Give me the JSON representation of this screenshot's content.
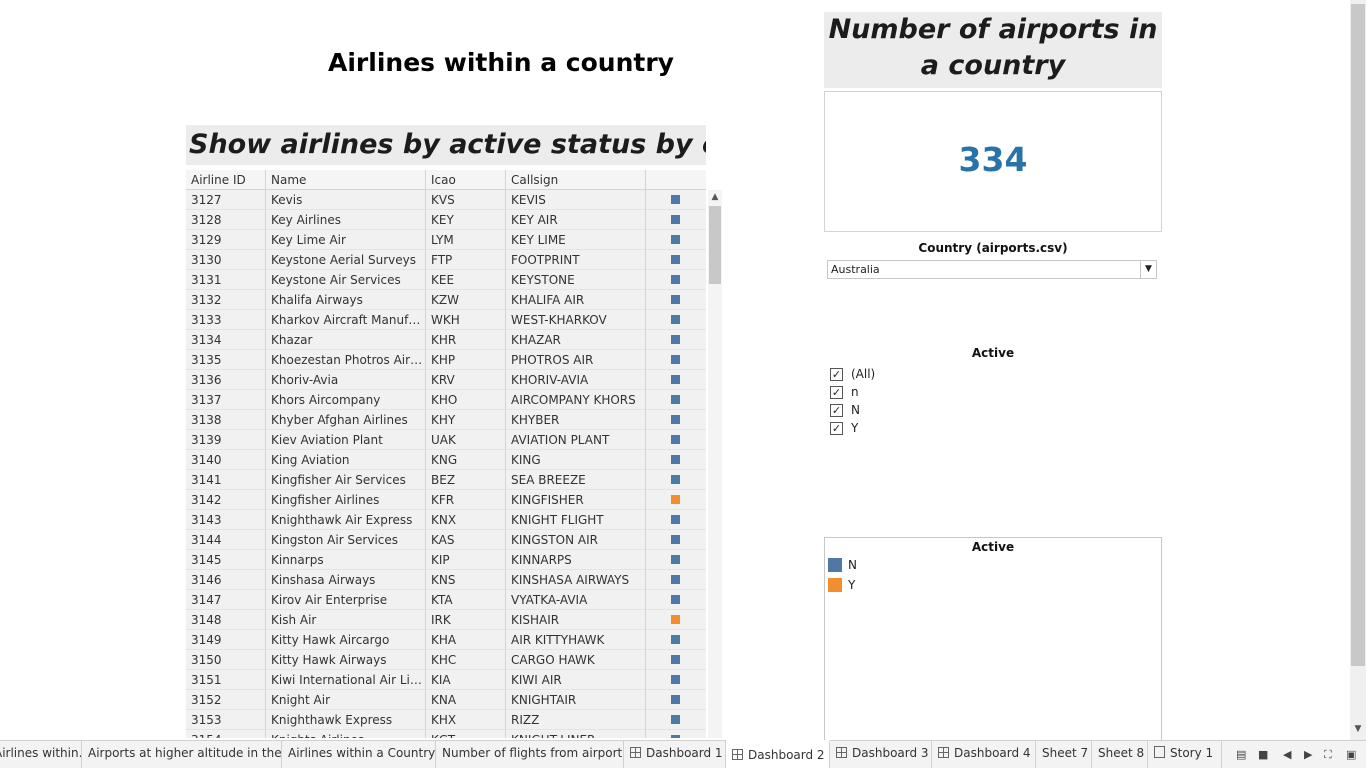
{
  "dashboard_title": "Airlines within a country",
  "table": {
    "title": "Show airlines by active status by country",
    "headers": [
      "Airline ID",
      "Name",
      "Icao",
      "Callsign",
      ""
    ],
    "rows": [
      {
        "id": "3127",
        "name": "Kevis",
        "icao": "KVS",
        "callsign": "KEVIS",
        "active": "N"
      },
      {
        "id": "3128",
        "name": "Key Airlines",
        "icao": "KEY",
        "callsign": "KEY AIR",
        "active": "N"
      },
      {
        "id": "3129",
        "name": "Key Lime Air",
        "icao": "LYM",
        "callsign": "KEY LIME",
        "active": "N"
      },
      {
        "id": "3130",
        "name": "Keystone Aerial Surveys",
        "icao": "FTP",
        "callsign": "FOOTPRINT",
        "active": "N"
      },
      {
        "id": "3131",
        "name": "Keystone Air Services",
        "icao": "KEE",
        "callsign": "KEYSTONE",
        "active": "N"
      },
      {
        "id": "3132",
        "name": "Khalifa Airways",
        "icao": "KZW",
        "callsign": "KHALIFA AIR",
        "active": "N"
      },
      {
        "id": "3133",
        "name": "Kharkov Aircraft Manufactur..",
        "icao": "WKH",
        "callsign": "WEST-KHARKOV",
        "active": "N"
      },
      {
        "id": "3134",
        "name": "Khazar",
        "icao": "KHR",
        "callsign": "KHAZAR",
        "active": "N"
      },
      {
        "id": "3135",
        "name": "Khoezestan Photros Air Lines",
        "icao": "KHP",
        "callsign": "PHOTROS AIR",
        "active": "N"
      },
      {
        "id": "3136",
        "name": "Khoriv-Avia",
        "icao": "KRV",
        "callsign": "KHORIV-AVIA",
        "active": "N"
      },
      {
        "id": "3137",
        "name": "Khors Aircompany",
        "icao": "KHO",
        "callsign": "AIRCOMPANY KHORS",
        "active": "N"
      },
      {
        "id": "3138",
        "name": "Khyber Afghan Airlines",
        "icao": "KHY",
        "callsign": "KHYBER",
        "active": "N"
      },
      {
        "id": "3139",
        "name": "Kiev Aviation Plant",
        "icao": "UAK",
        "callsign": "AVIATION PLANT",
        "active": "N"
      },
      {
        "id": "3140",
        "name": "King Aviation",
        "icao": "KNG",
        "callsign": "KING",
        "active": "N"
      },
      {
        "id": "3141",
        "name": "Kingfisher Air Services",
        "icao": "BEZ",
        "callsign": "SEA BREEZE",
        "active": "N"
      },
      {
        "id": "3142",
        "name": "Kingfisher Airlines",
        "icao": "KFR",
        "callsign": "KINGFISHER",
        "active": "Y"
      },
      {
        "id": "3143",
        "name": "Knighthawk Air Express",
        "icao": "KNX",
        "callsign": "KNIGHT FLIGHT",
        "active": "N"
      },
      {
        "id": "3144",
        "name": "Kingston Air Services",
        "icao": "KAS",
        "callsign": "KINGSTON AIR",
        "active": "N"
      },
      {
        "id": "3145",
        "name": "Kinnarps",
        "icao": "KIP",
        "callsign": "KINNARPS",
        "active": "N"
      },
      {
        "id": "3146",
        "name": "Kinshasa Airways",
        "icao": "KNS",
        "callsign": "KINSHASA AIRWAYS",
        "active": "N"
      },
      {
        "id": "3147",
        "name": "Kirov Air Enterprise",
        "icao": "KTA",
        "callsign": "VYATKA-AVIA",
        "active": "N"
      },
      {
        "id": "3148",
        "name": "Kish Air",
        "icao": "IRK",
        "callsign": "KISHAIR",
        "active": "Y"
      },
      {
        "id": "3149",
        "name": "Kitty Hawk Aircargo",
        "icao": "KHA",
        "callsign": "AIR KITTYHAWK",
        "active": "N"
      },
      {
        "id": "3150",
        "name": "Kitty Hawk Airways",
        "icao": "KHC",
        "callsign": "CARGO HAWK",
        "active": "N"
      },
      {
        "id": "3151",
        "name": "Kiwi International Air Lines",
        "icao": "KIA",
        "callsign": "KIWI AIR",
        "active": "N"
      },
      {
        "id": "3152",
        "name": "Knight Air",
        "icao": "KNA",
        "callsign": "KNIGHTAIR",
        "active": "N"
      },
      {
        "id": "3153",
        "name": "Knighthawk Express",
        "icao": "KHX",
        "callsign": "RIZZ",
        "active": "N"
      },
      {
        "id": "3154",
        "name": "Knights Airlines",
        "icao": "KGT",
        "callsign": "KNIGHT-LINER",
        "active": "N"
      }
    ]
  },
  "kpi": {
    "title": "Number of airports in a country",
    "value": "334"
  },
  "country_filter": {
    "label": "Country (airports.csv)",
    "selected": "Australia"
  },
  "active_filter": {
    "label": "Active",
    "options": [
      {
        "label": "(All)",
        "checked": true
      },
      {
        "label": "n",
        "checked": true
      },
      {
        "label": "N",
        "checked": true
      },
      {
        "label": "Y",
        "checked": true
      }
    ]
  },
  "legend": {
    "title": "Active",
    "items": [
      {
        "label": "N",
        "color": "#4e79a7"
      },
      {
        "label": "Y",
        "color": "#f28e2b"
      }
    ]
  },
  "colors": {
    "N": "#4e79a7",
    "Y": "#f28e2b",
    "kpi": "#2a72a8"
  },
  "tabs": [
    {
      "label": "Airlines within...",
      "type": "sheet",
      "active": false
    },
    {
      "label": "Airports at higher altitude in the ...",
      "type": "sheet",
      "active": false
    },
    {
      "label": "Airlines within a Country",
      "type": "sheet",
      "active": false
    },
    {
      "label": "Number of flights from airport",
      "type": "sheet",
      "active": false
    },
    {
      "label": "Dashboard 1",
      "type": "dashboard",
      "active": false
    },
    {
      "label": "Dashboard 2",
      "type": "dashboard",
      "active": true
    },
    {
      "label": "Dashboard 3",
      "type": "dashboard",
      "active": false
    },
    {
      "label": "Dashboard 4",
      "type": "dashboard",
      "active": false
    },
    {
      "label": "Sheet 7",
      "type": "sheet",
      "active": false
    },
    {
      "label": "Sheet 8",
      "type": "sheet",
      "active": false
    },
    {
      "label": "Story 1",
      "type": "story",
      "active": false
    }
  ]
}
